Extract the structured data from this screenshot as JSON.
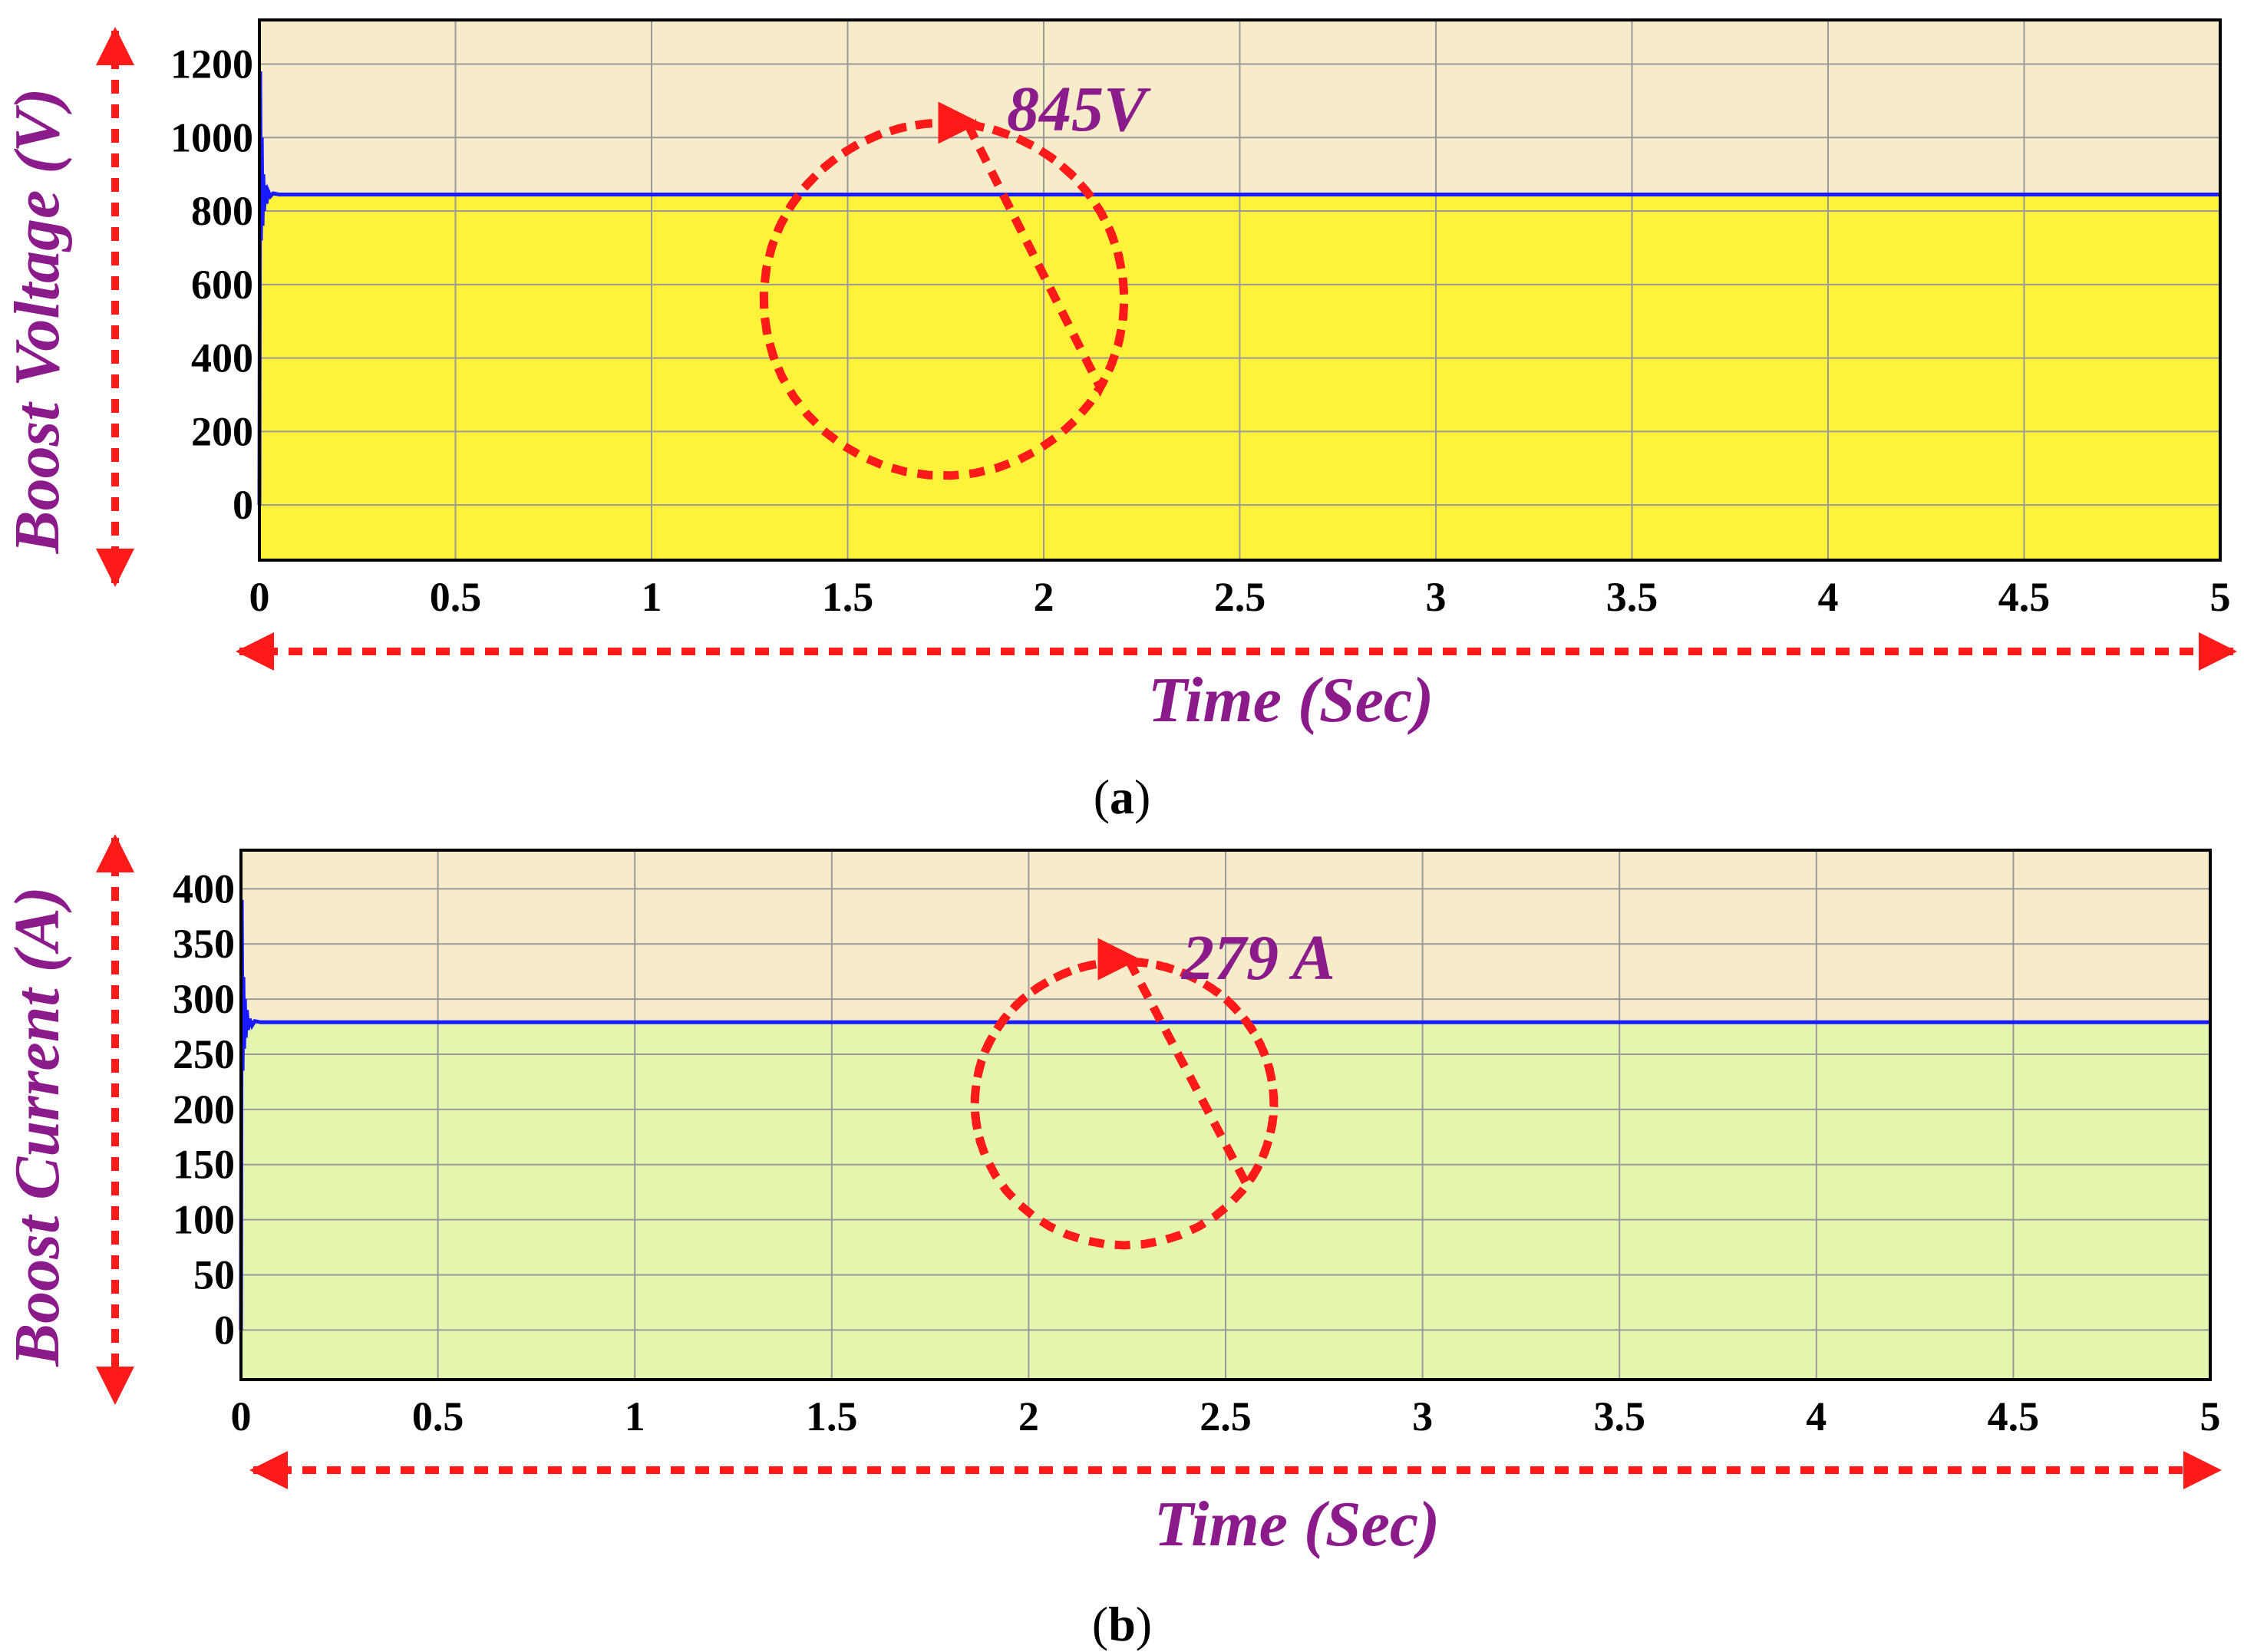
{
  "chart_data": [
    {
      "type": "line",
      "caption_letter": "a",
      "xlabel": "Time (Sec)",
      "ylabel": "Boost Voltage (V)",
      "xlim": [
        0,
        5
      ],
      "ylim": [
        -150,
        1320
      ],
      "xticks": [
        0,
        0.5,
        1,
        1.5,
        2,
        2.5,
        3,
        3.5,
        4,
        4.5,
        5
      ],
      "xtick_labels": [
        "0",
        "0.5",
        "1",
        "1.5",
        "2",
        "2.5",
        "3",
        "3.5",
        "4",
        "4.5",
        "5"
      ],
      "yticks": [
        0,
        200,
        400,
        600,
        800,
        1000,
        1200
      ],
      "ytick_labels": [
        "0",
        "200",
        "400",
        "600",
        "800",
        "1000",
        "1200"
      ],
      "grid": true,
      "annotation": "845V",
      "series": [
        {
          "x": [
            0,
            0.002,
            0.004,
            0.006,
            0.008,
            0.01,
            0.012,
            0.015,
            0.018,
            0.022,
            0.028,
            0.035,
            0.05,
            0.1,
            1,
            2,
            3,
            4,
            5
          ],
          "values": [
            0,
            1180,
            720,
            1000,
            760,
            900,
            800,
            870,
            820,
            855,
            840,
            848,
            845,
            845,
            845,
            845,
            845,
            845,
            845
          ]
        }
      ],
      "colors": {
        "line": "#1a1aff",
        "fill_under": "#fff23a",
        "fill_above": "#f6ecca",
        "arrows": "#ff1a1a"
      }
    },
    {
      "type": "line",
      "caption_letter": "b",
      "xlabel": "Time (Sec)",
      "ylabel": "Boost Current (A)",
      "xlim": [
        0,
        5
      ],
      "ylim": [
        -45,
        435
      ],
      "xticks": [
        0,
        0.5,
        1,
        1.5,
        2,
        2.5,
        3,
        3.5,
        4,
        4.5,
        5
      ],
      "xtick_labels": [
        "0",
        "0.5",
        "1",
        "1.5",
        "2",
        "2.5",
        "3",
        "3.5",
        "4",
        "4.5",
        "5"
      ],
      "yticks": [
        0,
        50,
        100,
        150,
        200,
        250,
        300,
        350,
        400
      ],
      "ytick_labels": [
        "0",
        "50",
        "100",
        "150",
        "200",
        "250",
        "300",
        "350",
        "400"
      ],
      "grid": true,
      "annotation": "279 A",
      "series": [
        {
          "x": [
            0,
            0.002,
            0.004,
            0.006,
            0.008,
            0.01,
            0.012,
            0.015,
            0.018,
            0.022,
            0.028,
            0.035,
            0.05,
            0.1,
            1,
            2,
            3,
            4,
            5
          ],
          "values": [
            0,
            390,
            235,
            320,
            255,
            300,
            265,
            290,
            272,
            282,
            276,
            280,
            279,
            279,
            279,
            279,
            279,
            279,
            279
          ]
        }
      ],
      "colors": {
        "line": "#1a1aff",
        "fill_under": "#e4f6ae",
        "fill_above": "#f6ecca",
        "arrows": "#ff1a1a"
      }
    }
  ]
}
